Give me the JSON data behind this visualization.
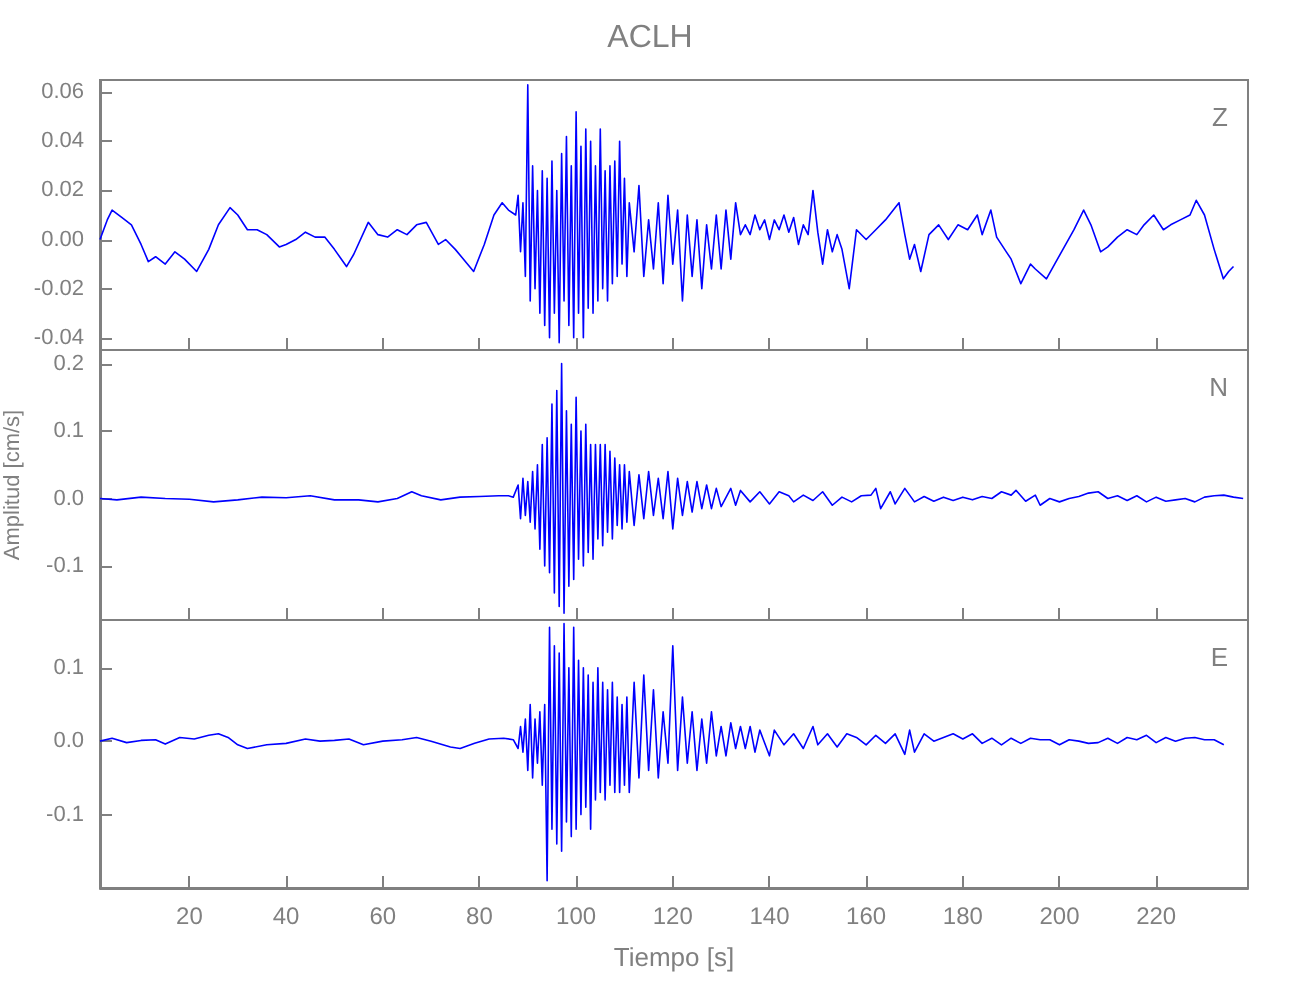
{
  "chart_data": [
    {
      "type": "line",
      "title": "ACLH",
      "annotations": [
        "Z"
      ],
      "color": "#0000ff",
      "tick_labels": "y",
      "xlim": [
        1.5,
        239
      ],
      "xticks": [
        20,
        40,
        60,
        80,
        100,
        120,
        140,
        160,
        180,
        200,
        220
      ],
      "ylim": [
        -0.045,
        0.065
      ],
      "yticks": [
        {
          "value": 0.06,
          "label": "0.06"
        },
        {
          "value": 0.04,
          "label": "0.04"
        },
        {
          "value": 0.02,
          "label": "0.02"
        },
        {
          "value": 0,
          "label": "0.00"
        },
        {
          "value": -0.02,
          "label": "-0.02"
        },
        {
          "value": -0.04,
          "label": "-0.04"
        }
      ],
      "x": [
        1.5,
        3,
        4,
        6,
        8,
        10,
        11.5,
        13,
        15,
        17,
        19,
        21.5,
        24,
        26,
        28.4,
        30,
        32,
        34,
        36,
        38.6,
        40,
        42,
        44,
        46,
        48,
        50,
        52.5,
        54,
        57,
        59,
        61,
        63,
        65,
        67,
        69,
        71.5,
        73,
        75,
        78.8,
        81,
        83,
        84.7,
        86,
        87.5,
        88,
        88.5,
        89,
        89.5,
        90,
        90.5,
        91,
        91.5,
        92,
        92.5,
        93,
        93.5,
        94,
        94.5,
        95,
        95.5,
        96,
        96.5,
        97,
        97.5,
        98,
        98.5,
        99,
        99.5,
        100,
        100.5,
        101,
        101.5,
        102,
        102.5,
        103,
        103.5,
        104,
        104.5,
        105,
        105.5,
        106,
        106.5,
        107,
        107.5,
        108,
        108.5,
        109,
        109.5,
        110,
        110.5,
        111,
        112,
        113,
        114,
        115,
        116,
        117,
        118,
        119,
        120,
        121,
        122,
        123,
        124,
        125,
        126,
        127,
        128,
        129,
        130,
        131,
        132,
        133,
        134,
        135,
        136,
        137,
        138,
        139,
        140,
        141,
        142,
        143,
        144,
        145,
        146,
        147,
        148,
        149,
        150,
        151,
        152,
        153,
        154,
        155,
        156.5,
        158,
        160,
        162,
        164,
        166.8,
        168,
        169,
        170,
        171.3,
        173,
        175,
        177,
        179,
        181,
        183,
        184,
        185.8,
        187,
        189,
        190,
        192,
        194,
        195,
        197.3,
        199,
        201,
        203,
        205,
        206.5,
        208.5,
        210,
        212,
        214,
        216,
        217.5,
        219.5,
        221.5,
        223,
        225,
        227,
        228.3,
        230,
        232,
        233.9,
        235,
        236
      ],
      "values": [
        0.0,
        0.008,
        0.012,
        0.009,
        0.006,
        -0.002,
        -0.009,
        -0.007,
        -0.01,
        -0.005,
        -0.008,
        -0.013,
        -0.004,
        0.006,
        0.013,
        0.01,
        0.004,
        0.004,
        0.002,
        -0.003,
        -0.002,
        0.0,
        0.003,
        0.001,
        0.001,
        -0.004,
        -0.011,
        -0.006,
        0.007,
        0.002,
        0.001,
        0.004,
        0.002,
        0.006,
        0.007,
        -0.002,
        0.0,
        -0.004,
        -0.013,
        -0.002,
        0.01,
        0.015,
        0.012,
        0.01,
        0.018,
        -0.005,
        0.015,
        -0.015,
        0.063,
        -0.025,
        0.03,
        -0.02,
        0.02,
        -0.03,
        0.028,
        -0.035,
        0.025,
        -0.04,
        0.032,
        -0.03,
        0.02,
        -0.042,
        0.035,
        -0.025,
        0.042,
        -0.035,
        0.03,
        -0.04,
        0.052,
        -0.03,
        0.038,
        -0.04,
        0.045,
        -0.028,
        0.04,
        -0.03,
        0.03,
        -0.025,
        0.045,
        -0.02,
        0.028,
        -0.025,
        0.03,
        -0.018,
        0.032,
        -0.015,
        0.04,
        -0.01,
        0.025,
        -0.015,
        0.015,
        -0.005,
        0.022,
        -0.015,
        0.008,
        -0.012,
        0.015,
        -0.018,
        0.018,
        -0.01,
        0.012,
        -0.025,
        0.01,
        -0.015,
        0.008,
        -0.02,
        0.006,
        -0.012,
        0.01,
        -0.012,
        0.012,
        -0.008,
        0.015,
        0.002,
        0.006,
        0.002,
        0.01,
        0.004,
        0.008,
        0.0,
        0.008,
        0.004,
        0.01,
        0.003,
        0.009,
        -0.002,
        0.006,
        0.002,
        0.02,
        0.003,
        -0.01,
        0.004,
        -0.005,
        0.002,
        -0.004,
        -0.02,
        0.004,
        0.0,
        0.004,
        0.008,
        0.015,
        0.002,
        -0.008,
        -0.002,
        -0.013,
        0.002,
        0.006,
        0.0,
        0.006,
        0.004,
        0.01,
        0.002,
        0.012,
        0.001,
        -0.005,
        -0.008,
        -0.018,
        -0.01,
        -0.012,
        -0.016,
        -0.01,
        -0.003,
        0.004,
        0.012,
        0.006,
        -0.005,
        -0.003,
        0.001,
        0.004,
        0.002,
        0.006,
        0.01,
        0.004,
        0.006,
        0.008,
        0.01,
        0.016,
        0.01,
        -0.004,
        -0.016,
        -0.013,
        -0.011
      ]
    },
    {
      "type": "line",
      "ylabel": "Amplitud [cm/s]",
      "annotations": [
        "N"
      ],
      "color": "#0000ff",
      "tick_labels": "y",
      "xlim": [
        1.5,
        239
      ],
      "xticks": [
        20,
        40,
        60,
        80,
        100,
        120,
        140,
        160,
        180,
        200,
        220
      ],
      "ylim": [
        -0.18,
        0.22
      ],
      "yticks": [
        {
          "value": 0.2,
          "label": "0.2"
        },
        {
          "value": 0.1,
          "label": "0.1"
        },
        {
          "value": 0,
          "label": "0.0"
        },
        {
          "value": -0.1,
          "label": "-0.1"
        }
      ],
      "x": [
        1.5,
        5,
        10,
        15,
        20,
        25,
        30,
        35,
        40,
        45,
        50,
        55,
        59,
        63,
        66,
        68,
        72,
        76,
        80,
        84,
        86,
        87,
        88,
        88.5,
        89,
        89.5,
        90,
        90.5,
        91,
        91.5,
        92,
        92.5,
        93,
        93.5,
        94,
        94.5,
        95,
        95.5,
        96,
        96.5,
        97,
        97.5,
        98,
        98.5,
        99,
        99.5,
        100,
        100.5,
        101,
        101.5,
        102,
        102.5,
        103,
        103.5,
        104,
        104.5,
        105,
        105.5,
        106,
        106.5,
        107,
        107.5,
        108,
        108.5,
        109,
        109.5,
        110,
        110.5,
        111,
        112,
        113,
        114,
        115,
        116,
        117,
        118,
        119,
        120,
        121,
        122,
        123,
        124,
        125,
        126,
        127,
        128,
        129,
        130,
        132,
        133,
        134,
        136,
        138,
        140,
        142,
        144,
        145,
        147,
        149,
        151,
        153,
        155,
        157,
        159,
        161,
        162,
        163,
        165,
        166,
        168,
        170,
        172,
        174,
        176,
        178,
        180,
        182,
        184,
        186,
        188,
        190,
        191,
        193,
        195,
        196,
        198,
        200,
        202,
        204,
        206,
        208,
        210,
        212,
        214,
        216,
        218,
        220,
        222,
        224,
        226,
        228,
        230,
        232,
        234,
        236,
        238
      ],
      "values": [
        0.0,
        -0.002,
        0.002,
        0.0,
        -0.001,
        -0.005,
        -0.002,
        0.002,
        0.001,
        0.004,
        -0.002,
        -0.002,
        -0.005,
        0.0,
        0.01,
        0.004,
        -0.002,
        0.002,
        0.003,
        0.004,
        0.004,
        0.002,
        0.02,
        -0.03,
        0.03,
        -0.025,
        0.025,
        -0.035,
        0.04,
        -0.045,
        0.05,
        -0.075,
        0.08,
        -0.1,
        0.09,
        -0.11,
        0.14,
        -0.14,
        0.16,
        -0.16,
        0.2,
        -0.17,
        0.13,
        -0.13,
        0.11,
        -0.12,
        0.15,
        -0.09,
        0.1,
        -0.1,
        0.11,
        -0.08,
        0.08,
        -0.09,
        0.08,
        -0.06,
        0.08,
        -0.07,
        0.08,
        -0.05,
        0.07,
        -0.06,
        0.06,
        -0.04,
        0.05,
        -0.045,
        0.05,
        -0.035,
        0.04,
        -0.04,
        0.035,
        -0.03,
        0.04,
        -0.025,
        0.03,
        -0.03,
        0.04,
        -0.045,
        0.03,
        -0.025,
        0.025,
        -0.02,
        0.025,
        -0.015,
        0.02,
        -0.015,
        0.015,
        -0.012,
        0.015,
        -0.01,
        0.012,
        -0.005,
        0.01,
        -0.008,
        0.01,
        0.004,
        -0.005,
        0.005,
        -0.003,
        0.01,
        -0.01,
        0.002,
        -0.005,
        0.004,
        0.005,
        0.015,
        -0.015,
        0.01,
        -0.008,
        0.015,
        -0.005,
        0.003,
        -0.004,
        0.002,
        -0.003,
        0.002,
        -0.002,
        0.003,
        0.0,
        0.01,
        0.005,
        0.012,
        -0.004,
        0.005,
        -0.01,
        0.0,
        -0.005,
        0.0,
        0.003,
        0.008,
        0.01,
        0.0,
        0.004,
        -0.003,
        0.004,
        -0.005,
        0.002,
        -0.004,
        -0.002,
        0.0,
        -0.005,
        0.002,
        0.004,
        0.005,
        0.002,
        0.0
      ]
    },
    {
      "type": "line",
      "xlabel": "Tiempo [s]",
      "annotations": [
        "E"
      ],
      "color": "#0000ff",
      "xlim": [
        1.5,
        239
      ],
      "xticks": [
        20,
        40,
        60,
        80,
        100,
        120,
        140,
        160,
        180,
        200,
        220
      ],
      "ylim": [
        -0.2,
        0.165
      ],
      "yticks": [
        {
          "value": 0.1,
          "label": "0.1"
        },
        {
          "value": 0,
          "label": "0.0"
        },
        {
          "value": -0.1,
          "label": "-0.1"
        }
      ],
      "x": [
        1.5,
        4,
        7,
        10,
        13,
        15,
        18,
        21,
        24,
        26,
        28,
        30,
        32,
        36,
        40,
        44,
        47,
        50,
        53,
        56,
        60,
        64,
        67,
        70,
        74,
        76,
        79,
        82,
        85,
        87,
        88,
        88.5,
        89,
        89.5,
        90,
        90.5,
        91,
        91.5,
        92,
        92.5,
        93,
        93.5,
        94,
        94.5,
        95,
        95.5,
        96,
        96.5,
        97,
        97.5,
        98,
        98.5,
        99,
        99.5,
        100,
        100.5,
        101,
        101.5,
        102,
        102.5,
        103,
        103.5,
        104,
        104.5,
        105,
        105.5,
        106,
        106.5,
        107,
        107.5,
        108,
        108.5,
        109,
        109.5,
        110,
        110.5,
        111,
        112,
        113,
        114,
        115,
        116,
        117,
        118,
        119,
        120,
        121,
        122,
        123,
        124,
        125,
        126,
        127,
        128,
        129,
        130,
        131,
        132,
        133,
        134,
        135,
        136,
        137,
        138,
        140,
        141,
        143,
        145,
        147,
        149,
        150,
        152,
        154,
        156,
        158,
        160,
        162,
        164,
        166,
        168,
        169,
        170,
        172,
        174,
        176,
        178,
        180,
        182,
        184,
        186,
        188,
        190,
        192,
        194,
        196,
        198,
        200,
        202,
        204,
        206,
        208,
        210,
        212,
        214,
        216,
        218,
        220,
        222,
        224,
        226,
        228,
        230,
        232,
        234
      ],
      "values": [
        0.0,
        0.004,
        -0.002,
        0.001,
        0.002,
        -0.004,
        0.005,
        0.003,
        0.008,
        0.01,
        0.005,
        -0.005,
        -0.01,
        -0.005,
        -0.003,
        0.003,
        0.0,
        0.001,
        0.003,
        -0.005,
        0.0,
        0.002,
        0.005,
        0.0,
        -0.008,
        -0.01,
        -0.003,
        0.003,
        0.004,
        0.002,
        -0.01,
        0.02,
        -0.015,
        0.03,
        -0.04,
        0.05,
        -0.05,
        0.03,
        -0.03,
        0.04,
        -0.06,
        0.05,
        -0.19,
        0.155,
        -0.12,
        0.13,
        -0.14,
        0.12,
        -0.15,
        0.16,
        -0.11,
        0.1,
        -0.13,
        0.155,
        -0.12,
        0.11,
        -0.1,
        0.1,
        -0.09,
        0.09,
        -0.12,
        0.08,
        -0.08,
        0.1,
        -0.07,
        0.08,
        -0.08,
        0.07,
        -0.06,
        0.08,
        -0.07,
        0.06,
        -0.07,
        0.05,
        -0.06,
        0.06,
        -0.07,
        0.08,
        -0.05,
        0.09,
        -0.04,
        0.07,
        -0.05,
        0.04,
        -0.03,
        0.13,
        -0.04,
        0.06,
        -0.03,
        0.04,
        -0.04,
        0.03,
        -0.03,
        0.04,
        -0.02,
        0.02,
        -0.02,
        0.025,
        -0.01,
        0.02,
        -0.01,
        0.02,
        -0.015,
        0.015,
        -0.02,
        0.015,
        -0.005,
        0.01,
        -0.01,
        0.02,
        -0.005,
        0.01,
        -0.008,
        0.01,
        0.005,
        -0.005,
        0.008,
        -0.003,
        0.01,
        -0.018,
        0.015,
        -0.015,
        0.01,
        0.0,
        0.005,
        0.01,
        0.003,
        0.01,
        -0.003,
        0.004,
        -0.005,
        0.004,
        -0.003,
        0.004,
        0.002,
        0.002,
        -0.005,
        0.002,
        0.0,
        -0.003,
        -0.002,
        0.004,
        -0.003,
        0.005,
        0.002,
        0.008,
        -0.002,
        0.005,
        0.0,
        0.004,
        0.005,
        0.002,
        0.002,
        -0.005
      ]
    }
  ]
}
